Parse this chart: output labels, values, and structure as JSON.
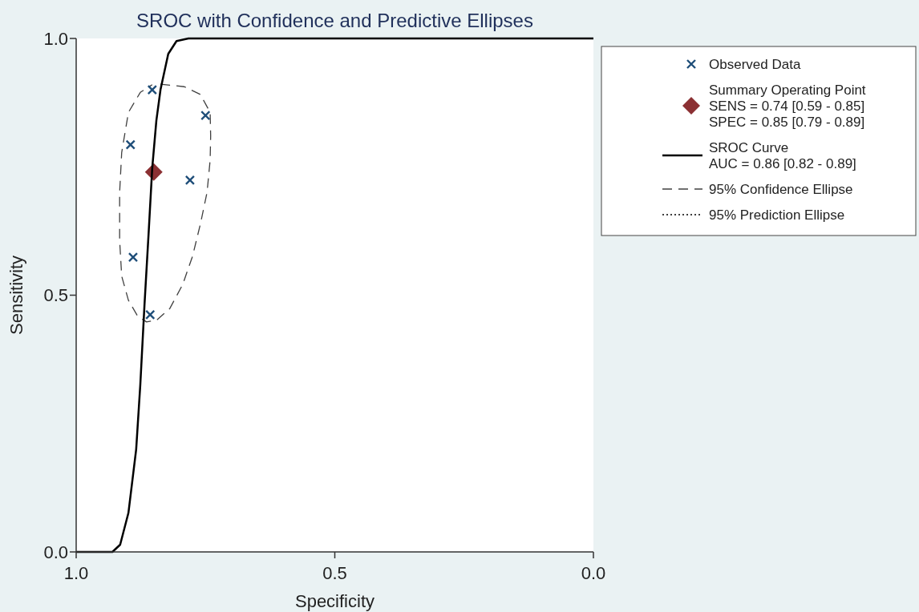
{
  "chart_data": {
    "type": "scatter",
    "title": "SROC with Confidence and Predictive Ellipses",
    "xlabel": "Specificity",
    "ylabel": "Sensitivity",
    "xlim": [
      1,
      0
    ],
    "ylim": [
      0,
      1
    ],
    "xticks": [
      {
        "value": 1,
        "label": "1.0"
      },
      {
        "value": 0.5,
        "label": "0.5"
      },
      {
        "value": 0,
        "label": "0.0"
      }
    ],
    "yticks": [
      {
        "value": 0,
        "label": "0.0"
      },
      {
        "value": 0.5,
        "label": "0.5"
      },
      {
        "value": 1,
        "label": "1.0"
      }
    ],
    "grid": false,
    "legend": "top right",
    "series": [
      {
        "name": "Observed Data",
        "marker": "cross",
        "color": "#1f4e79",
        "x": [
          0.853,
          0.75,
          0.895,
          0.78,
          0.89,
          0.857
        ],
        "values": [
          0.9,
          0.85,
          0.793,
          0.724,
          0.574,
          0.462
        ]
      },
      {
        "name": "Summary Operating Point\nSENS = 0.74 [0.59 - 0.85]\nSPEC = 0.85 [0.79 - 0.89]",
        "marker": "diamond",
        "color": "#8b3033",
        "x": [
          0.85
        ],
        "values": [
          0.74
        ]
      },
      {
        "name": "SROC Curve\nAUC = 0.86 [0.82 - 0.89]",
        "type": "line",
        "line_style": "solid",
        "color": "#000000",
        "x": [
          1,
          0.93,
          0.915,
          0.899,
          0.884,
          0.876,
          0.868,
          0.86,
          0.853,
          0.845,
          0.837,
          0.822,
          0.806,
          0.783,
          0
        ],
        "values": [
          0,
          0,
          0.014,
          0.076,
          0.2,
          0.326,
          0.48,
          0.62,
          0.747,
          0.84,
          0.9,
          0.97,
          0.995,
          1,
          1
        ]
      },
      {
        "name": "95% Confidence Ellipse",
        "type": "line",
        "line_style": "dashed",
        "color": "#404040",
        "x": [
          0.837,
          0.791,
          0.76,
          0.741,
          0.74,
          0.741,
          0.747,
          0.76,
          0.775,
          0.794,
          0.819,
          0.845,
          0.864,
          0.881,
          0.899,
          0.912,
          0.916,
          0.916,
          0.912,
          0.899,
          0.876,
          0.853
        ],
        "values": [
          0.911,
          0.906,
          0.891,
          0.856,
          0.81,
          0.763,
          0.7,
          0.638,
          0.576,
          0.521,
          0.474,
          0.451,
          0.448,
          0.459,
          0.49,
          0.537,
          0.607,
          0.7,
          0.778,
          0.856,
          0.895,
          0.91
        ]
      },
      {
        "name": "95% Prediction Ellipse",
        "type": "line",
        "line_style": "dotted",
        "color": "#000000"
      }
    ]
  }
}
